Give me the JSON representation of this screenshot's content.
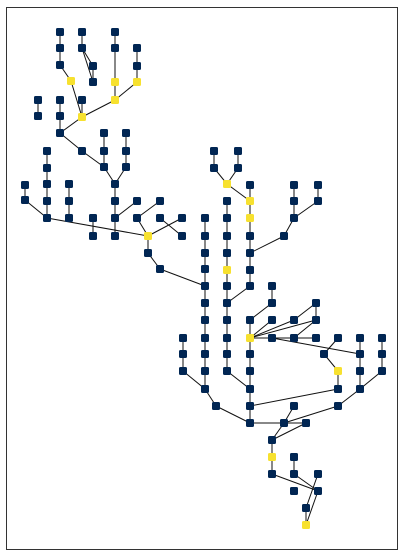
{
  "colors": {
    "background": "#ffffff",
    "node_default": "#012653",
    "node_highlight": "#f7e12f",
    "edge": "#111111",
    "frame": "#333333"
  },
  "diagram": {
    "type": "tree",
    "node_count": 171,
    "highlighted_node_count": 13
  }
}
